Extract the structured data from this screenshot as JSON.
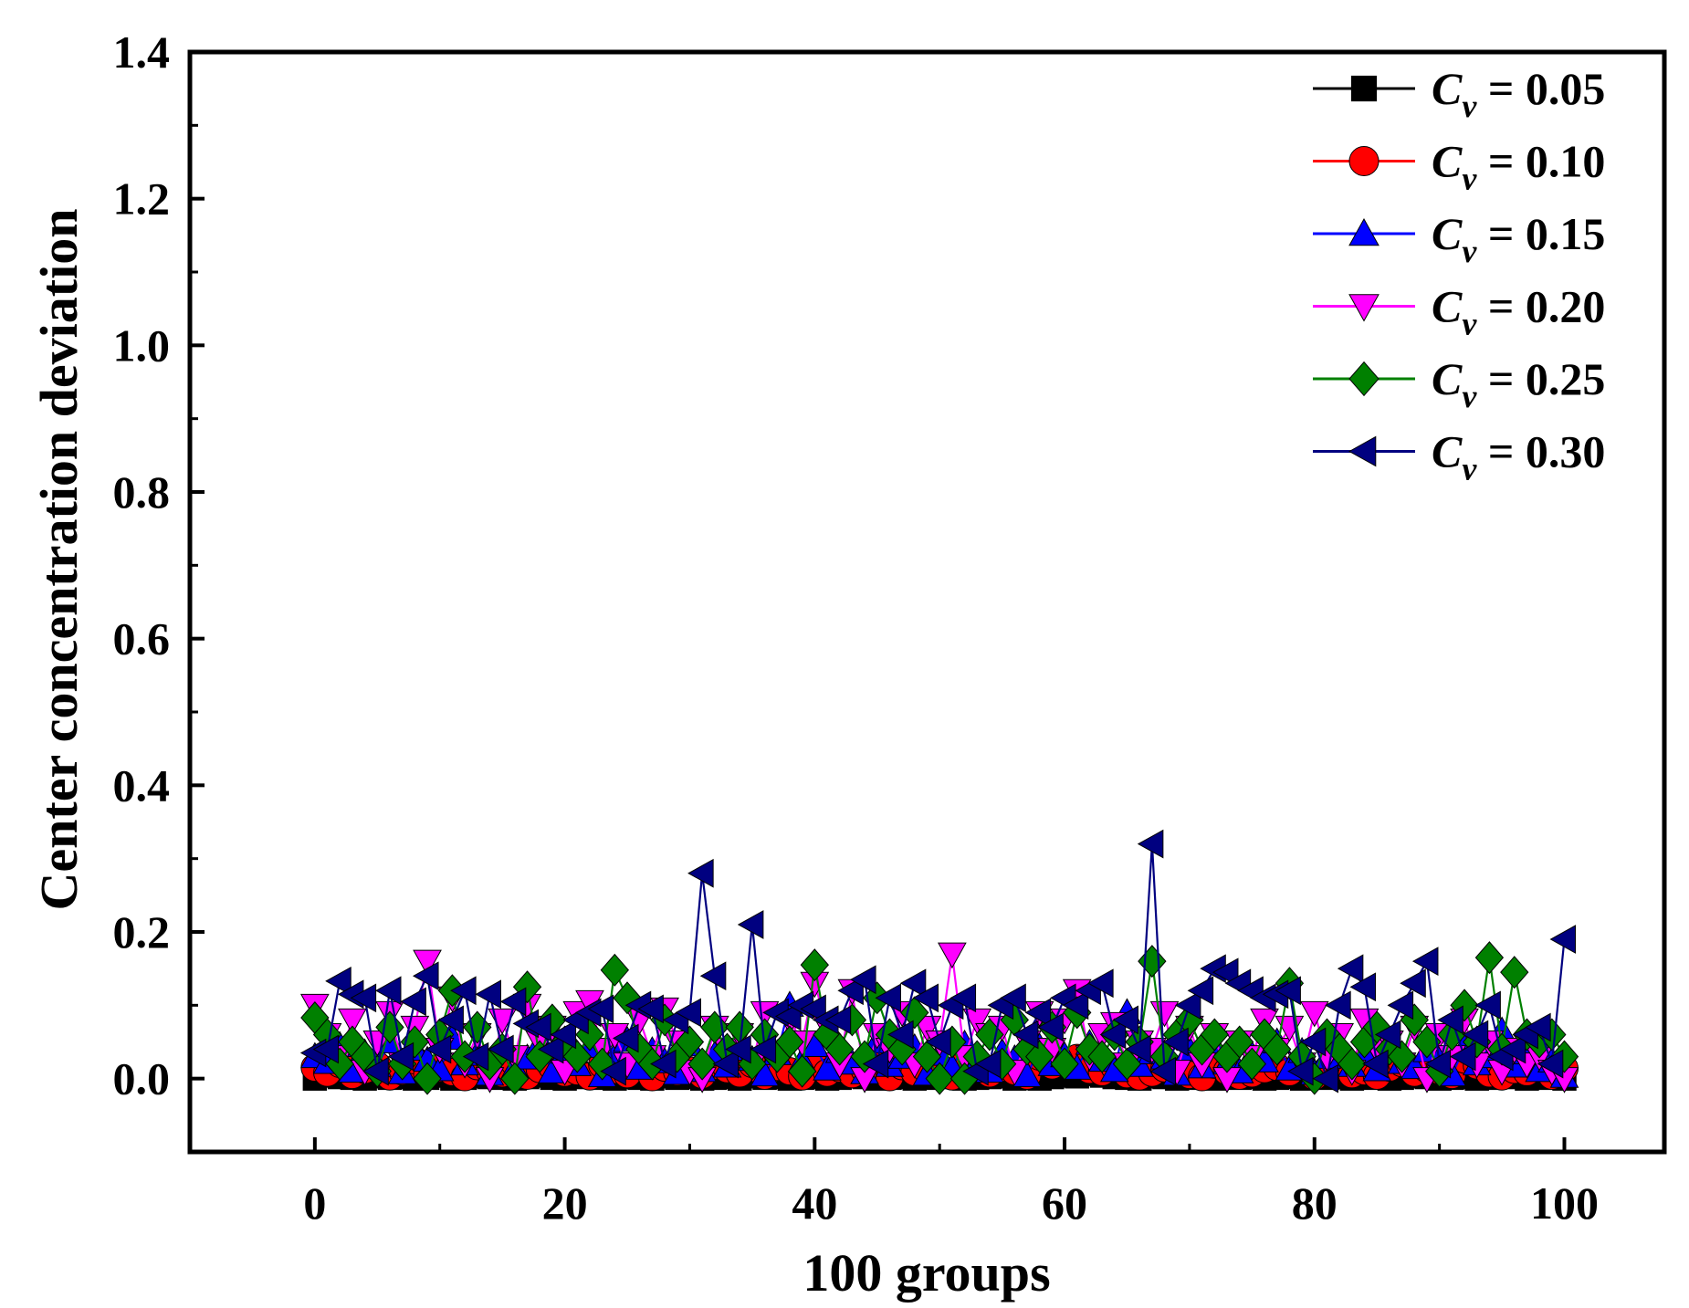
{
  "chart_data": {
    "type": "line",
    "title": "",
    "xlabel": "100 groups",
    "ylabel": "Center concentration deviation",
    "xlim": [
      -10,
      108
    ],
    "ylim": [
      -0.1,
      1.4
    ],
    "x_ticks": [
      0,
      20,
      40,
      60,
      80,
      100
    ],
    "x_tick_labels": [
      "0",
      "20",
      "40",
      "60",
      "80",
      "100"
    ],
    "y_ticks": [
      0.0,
      0.2,
      0.4,
      0.6,
      0.8,
      1.0,
      1.2,
      1.4
    ],
    "y_tick_labels": [
      "0.0",
      "0.2",
      "0.4",
      "0.6",
      "0.8",
      "1.0",
      "1.2",
      "1.4"
    ],
    "grid": false,
    "legend_position": "top-right",
    "x": [
      0,
      1,
      2,
      3,
      4,
      5,
      6,
      7,
      8,
      9,
      10,
      11,
      12,
      13,
      14,
      15,
      16,
      17,
      18,
      19,
      20,
      21,
      22,
      23,
      24,
      25,
      26,
      27,
      28,
      29,
      30,
      31,
      32,
      33,
      34,
      35,
      36,
      37,
      38,
      39,
      40,
      41,
      42,
      43,
      44,
      45,
      46,
      47,
      48,
      49,
      50,
      51,
      52,
      53,
      54,
      55,
      56,
      57,
      58,
      59,
      60,
      61,
      62,
      63,
      64,
      65,
      66,
      67,
      68,
      69,
      70,
      71,
      72,
      73,
      74,
      75,
      76,
      77,
      78,
      79,
      80,
      81,
      82,
      83,
      84,
      85,
      86,
      87,
      88,
      89,
      90,
      91,
      92,
      93,
      94,
      95,
      96,
      97,
      98,
      99,
      100
    ],
    "series": [
      {
        "name": "C_v = 0.05",
        "legend_prefix": "C",
        "legend_subscript": "v",
        "legend_suffix": " = 0.05",
        "color": "#000000",
        "marker": "square",
        "values": [
          0.0,
          0.004,
          0.002,
          0.001,
          0.0,
          0.003,
          0.001,
          0.002,
          0.0,
          0.001,
          0.004,
          0.0,
          0.001,
          0.003,
          0.002,
          0.001,
          0.0,
          0.002,
          0.004,
          0.001,
          0.0,
          0.002,
          0.003,
          0.001,
          0.0,
          0.002,
          0.001,
          0.0,
          0.003,
          0.001,
          0.002,
          0.0,
          0.001,
          0.002,
          0.0,
          0.003,
          0.001,
          0.002,
          0.0,
          0.001,
          0.002,
          0.0,
          0.001,
          0.003,
          0.002,
          0.0,
          0.001,
          0.002,
          0.0,
          0.001,
          0.003,
          0.002,
          0.0,
          0.001,
          0.002,
          0.003,
          0.0,
          0.001,
          0.0,
          0.002,
          0.004,
          0.003,
          0.006,
          0.004,
          0.002,
          0.001,
          0.0,
          0.003,
          0.002,
          0.0,
          0.001,
          0.002,
          0.0,
          0.003,
          0.001,
          0.002,
          0.0,
          0.001,
          0.002,
          0.0,
          0.003,
          0.001,
          0.002,
          0.0,
          0.001,
          0.002,
          0.0,
          0.001,
          0.003,
          0.002,
          0.0,
          0.001,
          0.002,
          0.0,
          0.001,
          0.003,
          0.002,
          0.0,
          0.001,
          0.002,
          0.0
        ]
      },
      {
        "name": "C_v = 0.10",
        "legend_prefix": "C",
        "legend_subscript": "v",
        "legend_suffix": " = 0.10",
        "color": "#ff0000",
        "marker": "circle",
        "values": [
          0.015,
          0.008,
          0.02,
          0.005,
          0.012,
          0.018,
          0.003,
          0.01,
          0.025,
          0.006,
          0.014,
          0.009,
          0.002,
          0.017,
          0.011,
          0.007,
          0.021,
          0.004,
          0.013,
          0.016,
          0.008,
          0.01,
          0.003,
          0.019,
          0.012,
          0.006,
          0.022,
          0.002,
          0.015,
          0.009,
          0.011,
          0.005,
          0.018,
          0.013,
          0.007,
          0.02,
          0.004,
          0.016,
          0.01,
          0.003,
          0.024,
          0.008,
          0.014,
          0.006,
          0.012,
          0.019,
          0.002,
          0.017,
          0.009,
          0.011,
          0.005,
          0.003,
          0.02,
          0.013,
          0.007,
          0.015,
          0.01,
          0.004,
          0.03,
          0.018,
          0.022,
          0.028,
          0.012,
          0.009,
          0.016,
          0.006,
          0.003,
          0.008,
          0.014,
          0.011,
          0.005,
          0.002,
          0.019,
          0.01,
          0.004,
          0.007,
          0.013,
          0.016,
          0.009,
          0.02,
          0.003,
          0.012,
          0.017,
          0.006,
          0.01,
          0.004,
          0.015,
          0.021,
          0.008,
          0.013,
          0.011,
          0.005,
          0.026,
          0.018,
          0.007,
          0.003,
          0.012,
          0.009,
          0.016,
          0.004,
          0.014
        ]
      },
      {
        "name": "C_v = 0.15",
        "legend_prefix": "C",
        "legend_subscript": "v",
        "legend_suffix": " = 0.15",
        "color": "#0000ff",
        "marker": "triangle-up",
        "values": [
          0.03,
          0.022,
          0.045,
          0.01,
          0.035,
          0.018,
          0.05,
          0.008,
          0.04,
          0.025,
          0.012,
          0.055,
          0.02,
          0.033,
          0.006,
          0.042,
          0.015,
          0.028,
          0.048,
          0.009,
          0.036,
          0.019,
          0.044,
          0.004,
          0.03,
          0.052,
          0.014,
          0.038,
          0.023,
          0.007,
          0.046,
          0.011,
          0.032,
          0.017,
          0.04,
          0.026,
          0.005,
          0.034,
          0.1,
          0.024,
          0.045,
          0.013,
          0.037,
          0.021,
          0.008,
          0.05,
          0.018,
          0.029,
          0.042,
          0.006,
          0.033,
          0.015,
          0.047,
          0.022,
          0.01,
          0.036,
          0.027,
          0.004,
          0.043,
          0.019,
          0.031,
          0.014,
          0.048,
          0.025,
          0.011,
          0.09,
          0.018,
          0.035,
          0.028,
          0.006,
          0.039,
          0.016,
          0.045,
          0.021,
          0.009,
          0.032,
          0.024,
          0.05,
          0.013,
          0.037,
          0.007,
          0.029,
          0.041,
          0.018,
          0.033,
          0.012,
          0.046,
          0.022,
          0.015,
          0.038,
          0.027,
          0.005,
          0.042,
          0.02,
          0.03,
          0.065,
          0.017,
          0.035,
          0.011,
          0.024,
          0.003
        ]
      },
      {
        "name": "C_v = 0.20",
        "legend_prefix": "C",
        "legend_subscript": "v",
        "legend_suffix": " = 0.20",
        "color": "#ff00ff",
        "marker": "triangle-down",
        "values": [
          0.1,
          0.06,
          0.03,
          0.08,
          0.01,
          0.05,
          0.09,
          0.02,
          0.07,
          0.16,
          0.04,
          0.11,
          0.02,
          0.06,
          0.0,
          0.08,
          0.03,
          0.1,
          0.05,
          0.07,
          0.01,
          0.09,
          0.105,
          0.04,
          0.06,
          0.02,
          0.08,
          0.03,
          0.095,
          0.05,
          0.01,
          0.0,
          0.07,
          0.04,
          0.06,
          0.02,
          0.09,
          0.03,
          0.08,
          0.05,
          0.13,
          0.07,
          0.02,
          0.12,
          0.0,
          0.06,
          0.04,
          0.09,
          0.02,
          0.07,
          0.05,
          0.17,
          0.03,
          0.08,
          0.06,
          0.07,
          0.01,
          0.05,
          0.09,
          0.04,
          0.08,
          0.12,
          0.03,
          0.06,
          0.075,
          0.02,
          0.05,
          0.04,
          0.09,
          0.01,
          0.07,
          0.02,
          0.06,
          0.0,
          0.05,
          0.03,
          0.08,
          0.04,
          0.07,
          0.02,
          0.09,
          0.03,
          0.06,
          0.01,
          0.08,
          0.04,
          0.05,
          0.02,
          0.07,
          0.0,
          0.06,
          0.03,
          0.08,
          0.02,
          0.05,
          0.01,
          0.04,
          0.02,
          0.03,
          0.01,
          0.0
        ]
      },
      {
        "name": "C_v = 0.25",
        "legend_prefix": "C",
        "legend_subscript": "v",
        "legend_suffix": " = 0.25",
        "color": "#008000",
        "marker": "diamond",
        "values": [
          0.083,
          0.06,
          0.02,
          0.05,
          0.03,
          0.01,
          0.07,
          0.02,
          0.05,
          0.0,
          0.06,
          0.12,
          0.03,
          0.07,
          0.02,
          0.04,
          0.0,
          0.125,
          0.03,
          0.08,
          0.05,
          0.03,
          0.06,
          0.02,
          0.148,
          0.11,
          0.04,
          0.02,
          0.08,
          0.03,
          0.05,
          0.02,
          0.07,
          0.04,
          0.07,
          0.02,
          0.06,
          0.03,
          0.05,
          0.01,
          0.155,
          0.06,
          0.04,
          0.08,
          0.03,
          0.11,
          0.06,
          0.04,
          0.09,
          0.03,
          0.0,
          0.05,
          0.0,
          0.03,
          0.06,
          0.02,
          0.08,
          0.04,
          0.03,
          0.07,
          0.02,
          0.09,
          0.04,
          0.03,
          0.06,
          0.02,
          0.05,
          0.16,
          0.03,
          0.06,
          0.08,
          0.04,
          0.06,
          0.03,
          0.05,
          0.02,
          0.06,
          0.04,
          0.13,
          0.03,
          0.0,
          0.06,
          0.04,
          0.02,
          0.05,
          0.07,
          0.04,
          0.03,
          0.08,
          0.05,
          0.01,
          0.06,
          0.1,
          0.05,
          0.165,
          0.04,
          0.145,
          0.06,
          0.05,
          0.06,
          0.03
        ]
      },
      {
        "name": "C_v = 0.30",
        "legend_prefix": "C",
        "legend_subscript": "v",
        "legend_suffix": " = 0.30",
        "color": "#000080",
        "marker": "triangle-left",
        "values": [
          0.035,
          0.04,
          0.133,
          0.115,
          0.11,
          0.01,
          0.12,
          0.03,
          0.105,
          0.14,
          0.04,
          0.08,
          0.12,
          0.03,
          0.115,
          0.04,
          0.105,
          0.075,
          0.07,
          0.04,
          0.06,
          0.08,
          0.09,
          0.095,
          0.01,
          0.055,
          0.1,
          0.095,
          0.02,
          0.08,
          0.09,
          0.28,
          0.14,
          0.02,
          0.04,
          0.21,
          0.04,
          0.09,
          0.085,
          0.1,
          0.095,
          0.08,
          0.08,
          0.12,
          0.135,
          0.02,
          0.11,
          0.06,
          0.13,
          0.11,
          0.05,
          0.1,
          0.11,
          0.01,
          0.02,
          0.1,
          0.11,
          0.06,
          0.09,
          0.07,
          0.11,
          0.1,
          0.12,
          0.13,
          0.06,
          0.08,
          0.04,
          0.32,
          0.01,
          0.05,
          0.1,
          0.12,
          0.15,
          0.145,
          0.13,
          0.12,
          0.11,
          0.115,
          0.12,
          0.01,
          0.05,
          0.0,
          0.1,
          0.15,
          0.125,
          0.02,
          0.06,
          0.1,
          0.13,
          0.16,
          0.02,
          0.08,
          0.03,
          0.06,
          0.1,
          0.03,
          0.04,
          0.06,
          0.07,
          0.02,
          0.19
        ]
      }
    ]
  }
}
